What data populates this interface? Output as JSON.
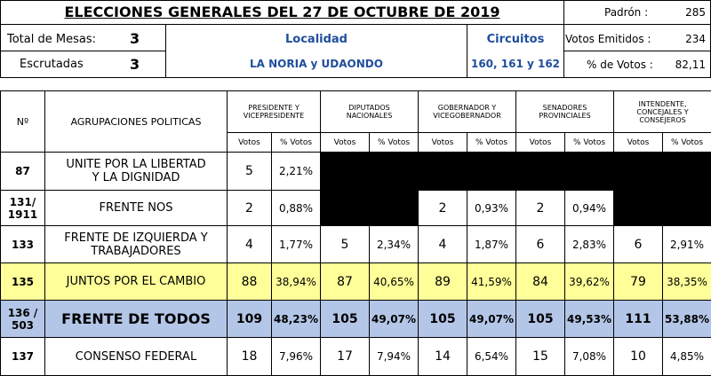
{
  "header": {
    "title": "ELECCIONES GENERALES DEL 27 DE OCTUBRE DE 2019",
    "padron_label": "Padrón :",
    "padron": "285",
    "mesas_label": "Total de Mesas:",
    "mesas": "3",
    "escrutadas_label": "Escrutadas",
    "escrutadas": "3",
    "localidad_label": "Localidad",
    "localidad": "LA NORIA y UDAONDO",
    "circuitos_label": "Circuitos",
    "circuitos": "160, 161 y 162",
    "emitidos_label": "Votos Emitidos :",
    "emitidos": "234",
    "porcentaje_label": "% de Votos :",
    "porcentaje": "82,11"
  },
  "table": {
    "columns": [
      "Nº",
      "AGRUPACIONES POLITICAS"
    ],
    "groups": [
      {
        "name": "PRESIDENTE Y VICEPRESIDENTE",
        "sub": [
          "Votos",
          "% Votos"
        ]
      },
      {
        "name": "DIPUTADOS NACIONALES",
        "sub": [
          "Votos",
          "% Votos"
        ]
      },
      {
        "name": "GOBERNADOR Y VICEGOBERNADOR",
        "sub": [
          "Votos",
          "% Votos"
        ]
      },
      {
        "name": "SENADORES PROVINCIALES",
        "sub": [
          "Votos",
          "% Votos"
        ]
      },
      {
        "name": "INTENDENTE, CONCEJALES Y CONSEJEROS",
        "sub": [
          "Votos",
          "% Votos"
        ]
      }
    ],
    "rows": [
      {
        "num": "87",
        "name": "UNITE POR LA LIBERTAD Y LA DIGNIDAD",
        "cells": [
          [
            "5",
            "2,21%"
          ],
          null,
          null,
          null,
          null
        ]
      },
      {
        "num": "131/\n1911",
        "name": "FRENTE NOS",
        "cells": [
          [
            "2",
            "0,88%"
          ],
          null,
          [
            "2",
            "0,93%"
          ],
          [
            "2",
            "0,94%"
          ],
          null
        ]
      },
      {
        "num": "133",
        "name": "FRENTE DE IZQUIERDA Y TRABAJADORES",
        "cells": [
          [
            "4",
            "1,77%"
          ],
          [
            "5",
            "2,34%"
          ],
          [
            "4",
            "1,87%"
          ],
          [
            "6",
            "2,83%"
          ],
          [
            "6",
            "2,91%"
          ]
        ]
      },
      {
        "num": "135",
        "name": "JUNTOS POR EL CAMBIO",
        "background": "#ffff99",
        "cells": [
          [
            "88",
            "38,94%"
          ],
          [
            "87",
            "40,65%"
          ],
          [
            "89",
            "41,59%"
          ],
          [
            "84",
            "39,62%"
          ],
          [
            "79",
            "38,35%"
          ]
        ]
      },
      {
        "num": "136 /\n503",
        "name": "FRENTE DE TODOS",
        "background": "#b4c6e7",
        "bold": true,
        "cells": [
          [
            "109",
            "48,23%"
          ],
          [
            "105",
            "49,07%"
          ],
          [
            "105",
            "49,07%"
          ],
          [
            "105",
            "49,53%"
          ],
          [
            "111",
            "53,88%"
          ]
        ]
      },
      {
        "num": "137",
        "name": "CONSENSO FEDERAL",
        "cells": [
          [
            "18",
            "7,96%"
          ],
          [
            "17",
            "7,94%"
          ],
          [
            "14",
            "6,54%"
          ],
          [
            "15",
            "7,08%"
          ],
          [
            "10",
            "4,85%"
          ]
        ]
      }
    ]
  }
}
